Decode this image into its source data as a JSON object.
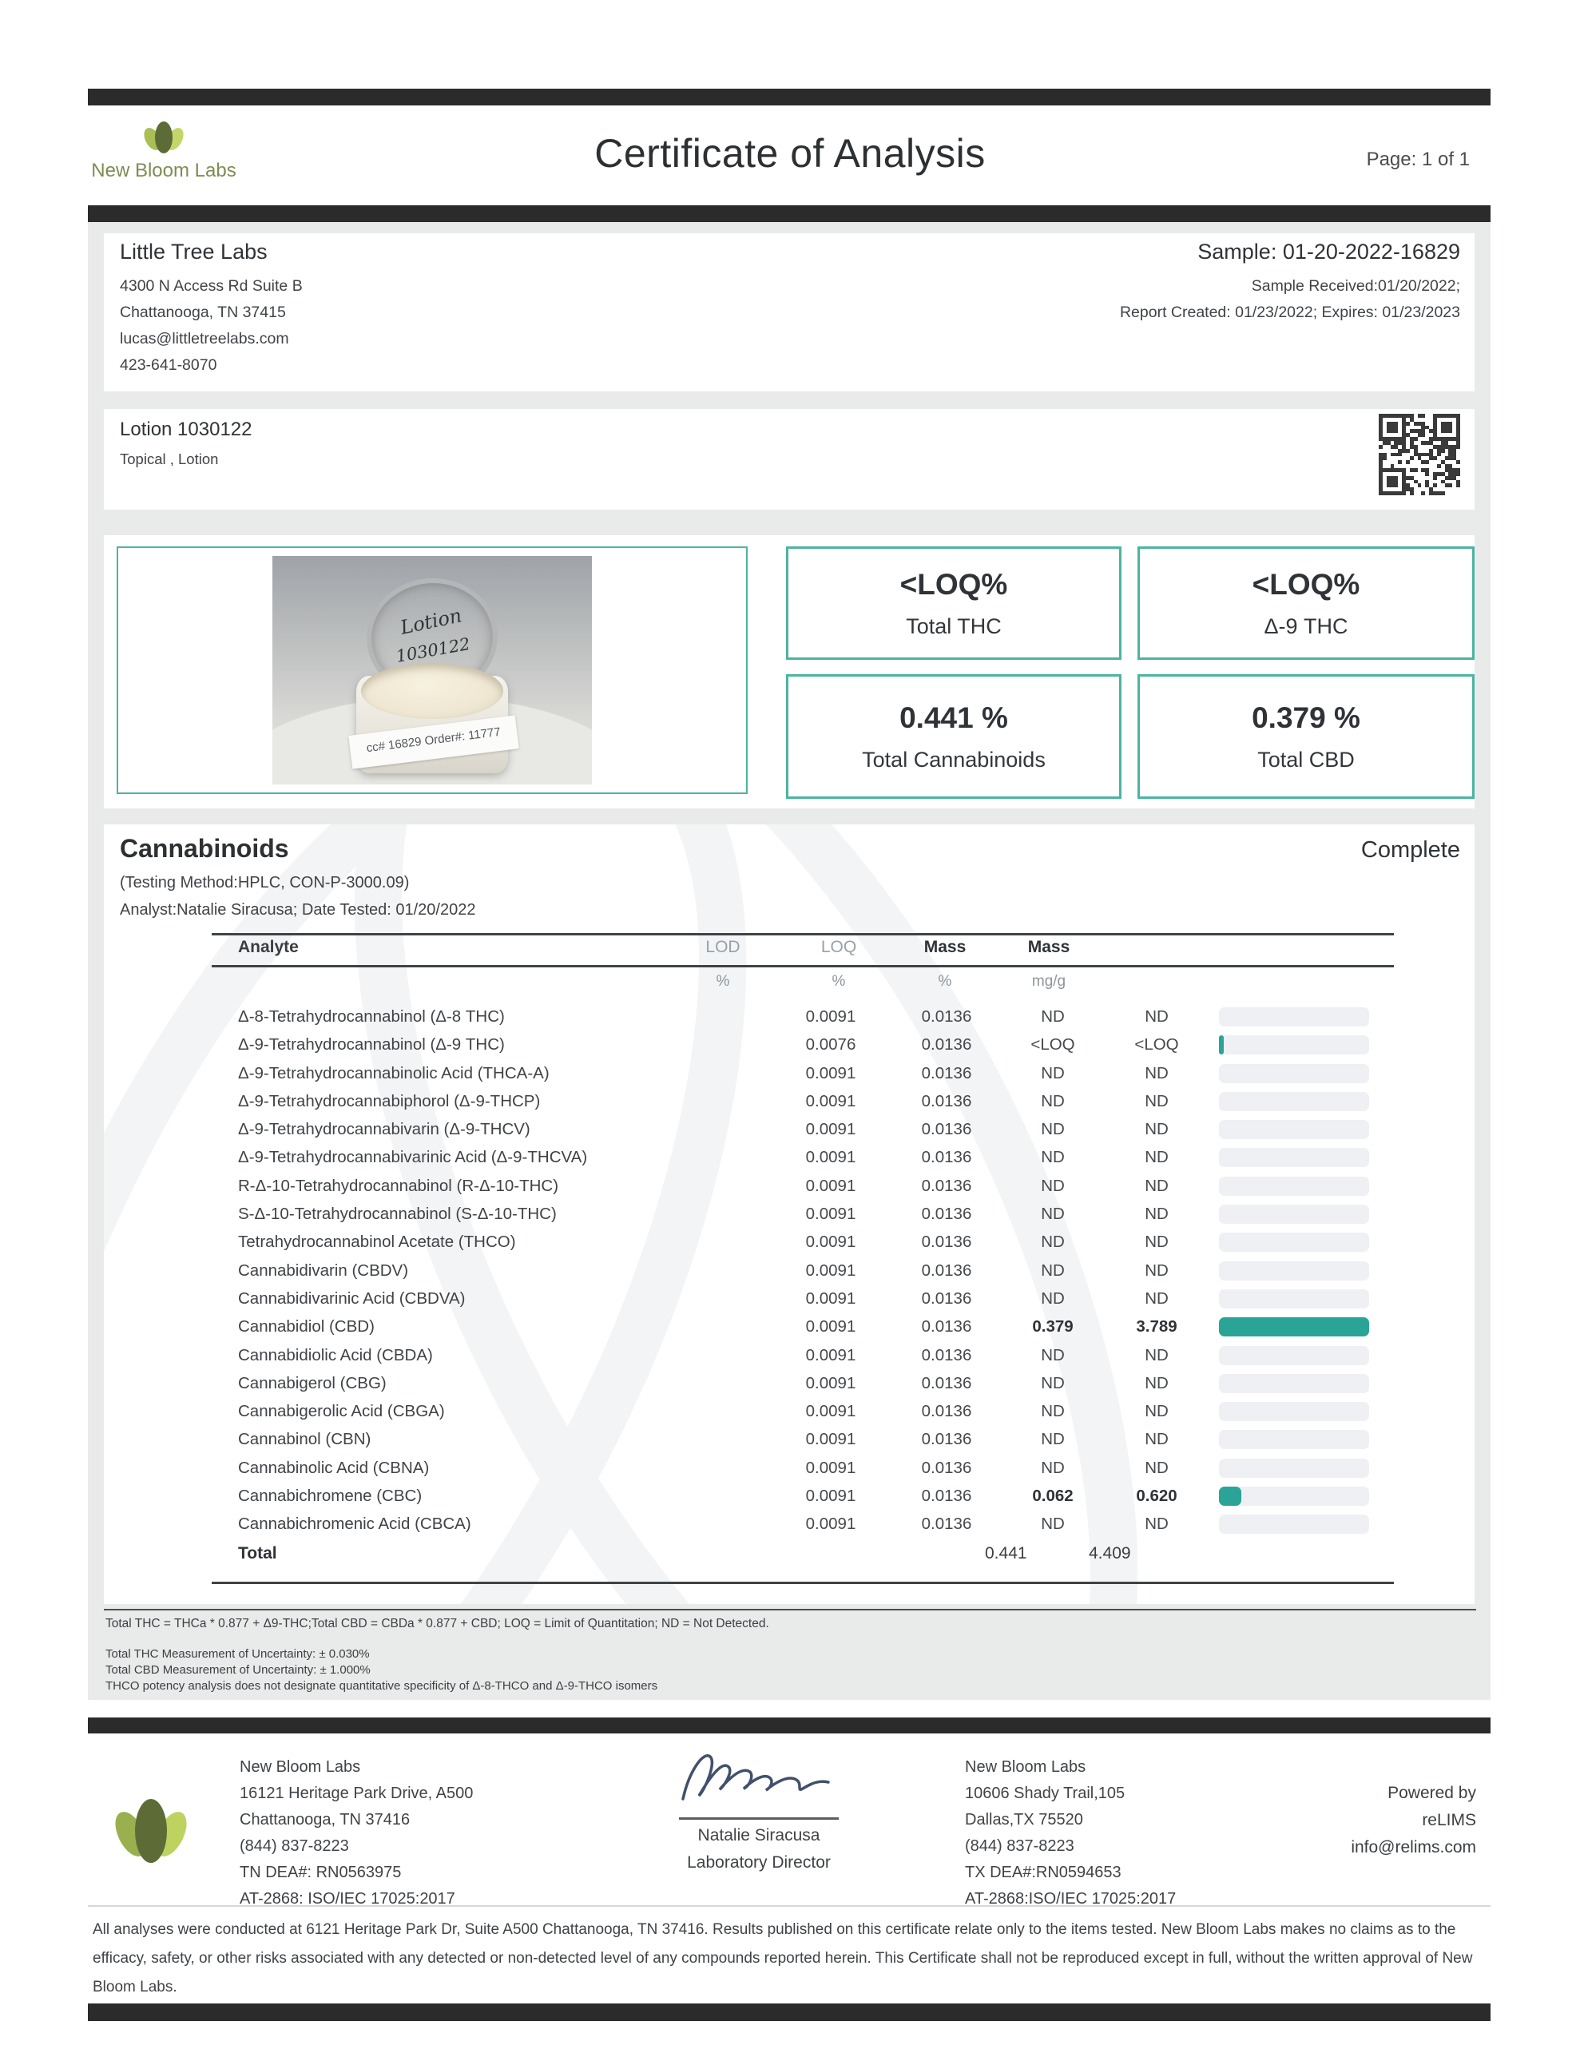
{
  "header": {
    "brand": "New Bloom Labs",
    "title": "Certificate of Analysis",
    "page": "Page: 1 of 1"
  },
  "client": {
    "name": "Little Tree Labs",
    "lines": [
      "4300 N Access Rd Suite B",
      "Chattanooga, TN 37415",
      "lucas@littletreelabs.com",
      "423-641-8070"
    ]
  },
  "sample": {
    "id": "Sample: 01-20-2022-16829",
    "received": "Sample Received:01/20/2022;",
    "report": "Report Created: 01/23/2022; Expires: 01/23/2023"
  },
  "product": {
    "name": "Lotion 1030122",
    "type": "Topical , Lotion",
    "photo": {
      "lid_line1": "Lotion",
      "lid_line2": "1030122",
      "label": "cc# 16829  Order#: 11777"
    }
  },
  "results": [
    {
      "value": "<LOQ%",
      "label": "Total THC"
    },
    {
      "value": "<LOQ%",
      "label": "Δ-9 THC"
    },
    {
      "value": "0.441 %",
      "label": "Total Cannabinoids"
    },
    {
      "value": "0.379 %",
      "label": "Total CBD"
    }
  ],
  "cannabinoids": {
    "section_title": "Cannabinoids",
    "status": "Complete",
    "method": "(Testing Method:HPLC, CON-P-3000.09)",
    "analyst": "Analyst:Natalie Siracusa; Date Tested: 01/20/2022",
    "columns": {
      "analyte": "Analyte",
      "lod": "LOD",
      "loq": "LOQ",
      "mass1": "Mass",
      "mass2": "Mass"
    },
    "units": {
      "lod": "%",
      "loq": "%",
      "mass1": "%",
      "mass2": "mg/g"
    },
    "rows": [
      {
        "analyte": "Δ-8-Tetrahydrocannabinol (Δ-8 THC)",
        "lod": "0.0091",
        "loq": "0.0136",
        "mass_pct": "ND",
        "mass_mgg": "ND",
        "bar": 0
      },
      {
        "analyte": "Δ-9-Tetrahydrocannabinol (Δ-9 THC)",
        "lod": "0.0076",
        "loq": "0.0136",
        "mass_pct": "<LOQ",
        "mass_mgg": "<LOQ",
        "bar": 0.03
      },
      {
        "analyte": "Δ-9-Tetrahydrocannabinolic Acid (THCA-A)",
        "lod": "0.0091",
        "loq": "0.0136",
        "mass_pct": "ND",
        "mass_mgg": "ND",
        "bar": 0
      },
      {
        "analyte": "Δ-9-Tetrahydrocannabiphorol (Δ-9-THCP)",
        "lod": "0.0091",
        "loq": "0.0136",
        "mass_pct": "ND",
        "mass_mgg": "ND",
        "bar": 0
      },
      {
        "analyte": "Δ-9-Tetrahydrocannabivarin (Δ-9-THCV)",
        "lod": "0.0091",
        "loq": "0.0136",
        "mass_pct": "ND",
        "mass_mgg": "ND",
        "bar": 0
      },
      {
        "analyte": "Δ-9-Tetrahydrocannabivarinic Acid (Δ-9-THCVA)",
        "lod": "0.0091",
        "loq": "0.0136",
        "mass_pct": "ND",
        "mass_mgg": "ND",
        "bar": 0
      },
      {
        "analyte": "R-Δ-10-Tetrahydrocannabinol (R-Δ-10-THC)",
        "lod": "0.0091",
        "loq": "0.0136",
        "mass_pct": "ND",
        "mass_mgg": "ND",
        "bar": 0
      },
      {
        "analyte": "S-Δ-10-Tetrahydrocannabinol (S-Δ-10-THC)",
        "lod": "0.0091",
        "loq": "0.0136",
        "mass_pct": "ND",
        "mass_mgg": "ND",
        "bar": 0
      },
      {
        "analyte": "Tetrahydrocannabinol Acetate (THCO)",
        "lod": "0.0091",
        "loq": "0.0136",
        "mass_pct": "ND",
        "mass_mgg": "ND",
        "bar": 0
      },
      {
        "analyte": "Cannabidivarin (CBDV)",
        "lod": "0.0091",
        "loq": "0.0136",
        "mass_pct": "ND",
        "mass_mgg": "ND",
        "bar": 0
      },
      {
        "analyte": "Cannabidivarinic Acid (CBDVA)",
        "lod": "0.0091",
        "loq": "0.0136",
        "mass_pct": "ND",
        "mass_mgg": "ND",
        "bar": 0
      },
      {
        "analyte": "Cannabidiol (CBD)",
        "lod": "0.0091",
        "loq": "0.0136",
        "mass_pct": "0.379",
        "mass_mgg": "3.789",
        "bar": 1
      },
      {
        "analyte": "Cannabidiolic Acid (CBDA)",
        "lod": "0.0091",
        "loq": "0.0136",
        "mass_pct": "ND",
        "mass_mgg": "ND",
        "bar": 0
      },
      {
        "analyte": "Cannabigerol (CBG)",
        "lod": "0.0091",
        "loq": "0.0136",
        "mass_pct": "ND",
        "mass_mgg": "ND",
        "bar": 0
      },
      {
        "analyte": "Cannabigerolic Acid (CBGA)",
        "lod": "0.0091",
        "loq": "0.0136",
        "mass_pct": "ND",
        "mass_mgg": "ND",
        "bar": 0
      },
      {
        "analyte": "Cannabinol (CBN)",
        "lod": "0.0091",
        "loq": "0.0136",
        "mass_pct": "ND",
        "mass_mgg": "ND",
        "bar": 0
      },
      {
        "analyte": "Cannabinolic Acid (CBNA)",
        "lod": "0.0091",
        "loq": "0.0136",
        "mass_pct": "ND",
        "mass_mgg": "ND",
        "bar": 0
      },
      {
        "analyte": "Cannabichromene (CBC)",
        "lod": "0.0091",
        "loq": "0.0136",
        "mass_pct": "0.062",
        "mass_mgg": "0.620",
        "bar": 0.15
      },
      {
        "analyte": "Cannabichromenic Acid (CBCA)",
        "lod": "0.0091",
        "loq": "0.0136",
        "mass_pct": "ND",
        "mass_mgg": "ND",
        "bar": 0
      }
    ],
    "total": {
      "label": "Total",
      "mass_pct": "0.441",
      "mass_mgg": "4.409"
    }
  },
  "footnotes": {
    "formula": "Total THC = THCa * 0.877 + Δ9-THC;Total CBD = CBDa * 0.877 + CBD; LOQ = Limit of Quantitation; ND = Not Detected.",
    "uncertainty": [
      "Total THC Measurement of Uncertainty: ± 0.030%",
      "Total CBD Measurement of Uncertainty: ± 1.000%",
      "THCO potency analysis does not designate quantitative specificity of Δ-8-THCO and Δ-9-THCO isomers"
    ]
  },
  "footer": {
    "lab1": [
      "New Bloom Labs",
      "16121 Heritage Park Drive, A500",
      "Chattanooga, TN 37416",
      "(844) 837-8223",
      "TN DEA#: RN0563975",
      "AT-2868: ISO/IEC 17025:2017"
    ],
    "lab2": [
      "New Bloom Labs",
      "10606 Shady Trail,105",
      "Dallas,TX 75520",
      "(844) 837-8223",
      "TX DEA#:RN0594653",
      "AT-2868:ISO/IEC 17025:2017"
    ],
    "signature": {
      "name": "Natalie Siracusa",
      "title": "Laboratory Director"
    },
    "powered": [
      "Powered by",
      "reLIMS",
      "info@relims.com"
    ]
  },
  "disclaimer": "All analyses were conducted at 6121 Heritage Park Dr, Suite A500 Chattanooga, TN 37416. Results published on this certificate relate only to the items tested. New Bloom Labs makes no claims as to the efficacy, safety, or other risks associated with any detected or non-detected level of any compounds reported herein. This Certificate shall not be reproduced except in full, without the written approval of New Bloom Labs.",
  "colors": {
    "accent_teal": "#2aa496",
    "accent_teal_border": "#4cb4a1",
    "bar_track": "#eef0f3",
    "band_black": "#2b2b2b",
    "brand_green_dark": "#5d6c37",
    "brand_green_light": "#c3d66a",
    "brand_text": "#7d8c52"
  }
}
